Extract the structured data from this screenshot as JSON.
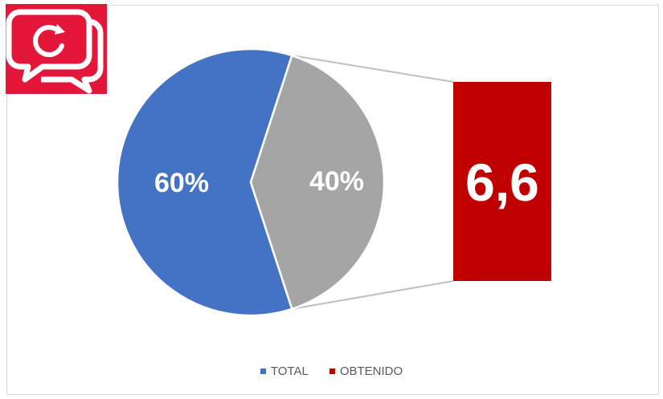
{
  "chart_data": {
    "type": "pie",
    "subtype": "bar-of-pie",
    "slices": [
      {
        "name": "TOTAL",
        "label": "60%",
        "value": 60,
        "color": "#4472c4"
      },
      {
        "name": "OBTENIDO",
        "label": "40%",
        "value": 40,
        "color": "#a5a5a5"
      }
    ],
    "breakout": {
      "label": "6,6",
      "value": 6.6,
      "color": "#c00000"
    },
    "legend": {
      "position": "bottom",
      "items": [
        {
          "label": "TOTAL",
          "color": "#4472c4"
        },
        {
          "label": "OBTENIDO",
          "color": "#c00000"
        }
      ]
    }
  },
  "logo": {
    "icon": "chat-bubbles-refresh-icon",
    "color": "#e4173a"
  }
}
